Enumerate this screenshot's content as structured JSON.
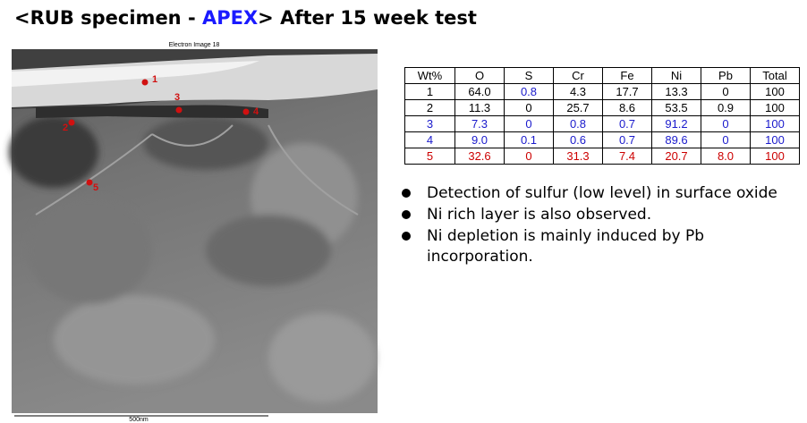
{
  "header": {
    "title_pre": "<RUB specimen - ",
    "title_highlight": "APEX",
    "title_post": "> After 15 week test"
  },
  "image": {
    "caption": "Electron Image 18",
    "scale_label": "500nm",
    "points": [
      "1",
      "2",
      "3",
      "4",
      "5"
    ]
  },
  "table": {
    "header": [
      "Wt%",
      "O",
      "S",
      "Cr",
      "Fe",
      "Ni",
      "Pb",
      "Total"
    ],
    "rows": [
      [
        "1",
        "64.0",
        "0.8",
        "4.3",
        "17.7",
        "13.3",
        "0",
        "100"
      ],
      [
        "2",
        "11.3",
        "0",
        "25.7",
        "8.6",
        "53.5",
        "0.9",
        "100"
      ],
      [
        "3",
        "7.3",
        "0",
        "0.8",
        "0.7",
        "91.2",
        "0",
        "100"
      ],
      [
        "4",
        "9.0",
        "0.1",
        "0.6",
        "0.7",
        "89.6",
        "0",
        "100"
      ],
      [
        "5",
        "32.6",
        "0",
        "31.3",
        "7.4",
        "20.7",
        "8.0",
        "100"
      ]
    ],
    "row_colors": [
      "#000000",
      "#000000",
      "#1a1acc",
      "#1a1acc",
      "#cc0000"
    ],
    "highlight_cell": {
      "row": 0,
      "col": 2,
      "color": "#1a1acc"
    }
  },
  "bullets": [
    "Detection of sulfur (low level) in surface oxide",
    "Ni rich layer is also observed.",
    "Ni depletion is mainly induced by Pb incorporation."
  ]
}
